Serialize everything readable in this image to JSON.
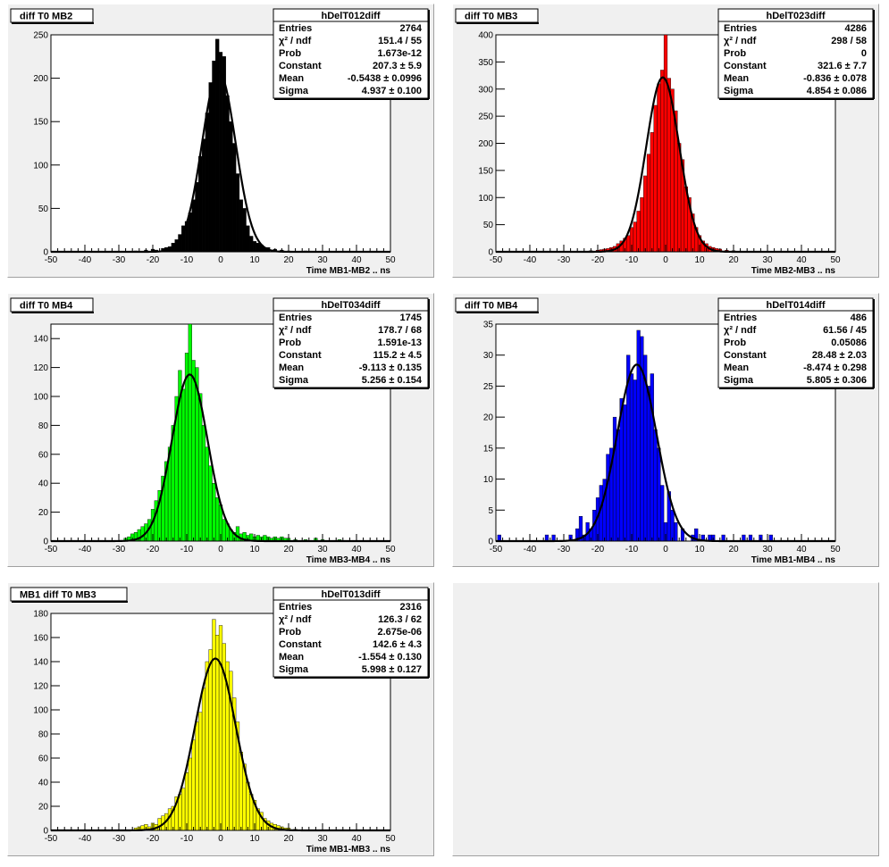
{
  "chart_data": [
    {
      "type": "histogram",
      "pad_label": "diff T0 MB2",
      "histogram_name": "hDelT012diff",
      "xlabel": "Time MB1-MB2  ..  ns",
      "ylabel": "",
      "xlim": [
        -50,
        50
      ],
      "ylim": [
        0,
        250
      ],
      "x_ticks": [
        -50,
        -40,
        -30,
        -20,
        -10,
        0,
        10,
        20,
        30,
        40,
        50
      ],
      "y_ticks": [
        0,
        50,
        100,
        150,
        200,
        250
      ],
      "fill_color": "#000000",
      "stats": [
        {
          "label": "Entries",
          "value": "2764"
        },
        {
          "label": "χ² / ndf",
          "value": "151.4 / 55"
        },
        {
          "label": "Prob",
          "value": "1.673e-12"
        },
        {
          "label": "Constant",
          "value": "207.3 ± 5.9"
        },
        {
          "label": "Mean",
          "value": "-0.5438 ± 0.0996"
        },
        {
          "label": "Sigma",
          "value": "4.937 ± 0.100"
        }
      ],
      "fit": {
        "constant": 207.3,
        "mean": -0.5438,
        "sigma": 4.937
      },
      "bin_width": 1,
      "bins": [
        {
          "x": -25,
          "y": 1
        },
        {
          "x": -22,
          "y": 2
        },
        {
          "x": -20,
          "y": 3
        },
        {
          "x": -19,
          "y": 2
        },
        {
          "x": -17,
          "y": 4
        },
        {
          "x": -16,
          "y": 5
        },
        {
          "x": -15,
          "y": 6
        },
        {
          "x": -14,
          "y": 10
        },
        {
          "x": -13,
          "y": 14
        },
        {
          "x": -12,
          "y": 20
        },
        {
          "x": -11,
          "y": 30
        },
        {
          "x": -10,
          "y": 35
        },
        {
          "x": -9,
          "y": 45
        },
        {
          "x": -8,
          "y": 60
        },
        {
          "x": -7,
          "y": 80
        },
        {
          "x": -6,
          "y": 110
        },
        {
          "x": -5,
          "y": 130
        },
        {
          "x": -4,
          "y": 160
        },
        {
          "x": -3,
          "y": 195
        },
        {
          "x": -2,
          "y": 220
        },
        {
          "x": -1,
          "y": 245
        },
        {
          "x": 0,
          "y": 230
        },
        {
          "x": 1,
          "y": 225
        },
        {
          "x": 2,
          "y": 180
        },
        {
          "x": 3,
          "y": 150
        },
        {
          "x": 4,
          "y": 125
        },
        {
          "x": 5,
          "y": 90
        },
        {
          "x": 6,
          "y": 60
        },
        {
          "x": 7,
          "y": 50
        },
        {
          "x": 8,
          "y": 30
        },
        {
          "x": 9,
          "y": 18
        },
        {
          "x": 10,
          "y": 12
        },
        {
          "x": 11,
          "y": 10
        },
        {
          "x": 12,
          "y": 8
        },
        {
          "x": 13,
          "y": 5
        },
        {
          "x": 14,
          "y": 5
        },
        {
          "x": 16,
          "y": 3
        },
        {
          "x": 18,
          "y": 2
        },
        {
          "x": 20,
          "y": 1
        },
        {
          "x": 25,
          "y": 1
        }
      ]
    },
    {
      "type": "histogram",
      "pad_label": "diff T0 MB3",
      "histogram_name": "hDelT023diff",
      "xlabel": "Time MB2-MB3  ..  ns",
      "ylabel": "",
      "xlim": [
        -50,
        50
      ],
      "ylim": [
        0,
        400
      ],
      "x_ticks": [
        -50,
        -40,
        -30,
        -20,
        -10,
        0,
        10,
        20,
        30,
        40,
        50
      ],
      "y_ticks": [
        0,
        50,
        100,
        150,
        200,
        250,
        300,
        350,
        400
      ],
      "fill_color": "#ff0000",
      "stats": [
        {
          "label": "Entries",
          "value": "4286"
        },
        {
          "label": "χ² / ndf",
          "value": "298 / 58"
        },
        {
          "label": "Prob",
          "value": "0"
        },
        {
          "label": "Constant",
          "value": "321.6 ± 7.7"
        },
        {
          "label": "Mean",
          "value": "-0.836 ± 0.078"
        },
        {
          "label": "Sigma",
          "value": "4.854 ± 0.086"
        }
      ],
      "fit": {
        "constant": 321.6,
        "mean": -0.836,
        "sigma": 4.854
      },
      "bin_width": 1,
      "bins": [
        {
          "x": -25,
          "y": 1
        },
        {
          "x": -22,
          "y": 2
        },
        {
          "x": -20,
          "y": 3
        },
        {
          "x": -19,
          "y": 4
        },
        {
          "x": -18,
          "y": 5
        },
        {
          "x": -17,
          "y": 6
        },
        {
          "x": -16,
          "y": 8
        },
        {
          "x": -15,
          "y": 10
        },
        {
          "x": -14,
          "y": 15
        },
        {
          "x": -13,
          "y": 20
        },
        {
          "x": -12,
          "y": 25
        },
        {
          "x": -11,
          "y": 30
        },
        {
          "x": -10,
          "y": 45
        },
        {
          "x": -9,
          "y": 55
        },
        {
          "x": -8,
          "y": 75
        },
        {
          "x": -7,
          "y": 100
        },
        {
          "x": -6,
          "y": 140
        },
        {
          "x": -5,
          "y": 180
        },
        {
          "x": -4,
          "y": 220
        },
        {
          "x": -3,
          "y": 270
        },
        {
          "x": -2,
          "y": 310
        },
        {
          "x": -1,
          "y": 335
        },
        {
          "x": 0,
          "y": 400
        },
        {
          "x": 1,
          "y": 320
        },
        {
          "x": 2,
          "y": 300
        },
        {
          "x": 3,
          "y": 260
        },
        {
          "x": 4,
          "y": 200
        },
        {
          "x": 5,
          "y": 170
        },
        {
          "x": 6,
          "y": 120
        },
        {
          "x": 7,
          "y": 100
        },
        {
          "x": 8,
          "y": 70
        },
        {
          "x": 9,
          "y": 45
        },
        {
          "x": 10,
          "y": 30
        },
        {
          "x": 11,
          "y": 20
        },
        {
          "x": 12,
          "y": 15
        },
        {
          "x": 13,
          "y": 10
        },
        {
          "x": 14,
          "y": 8
        },
        {
          "x": 15,
          "y": 6
        },
        {
          "x": 16,
          "y": 5
        },
        {
          "x": 18,
          "y": 3
        },
        {
          "x": 20,
          "y": 2
        },
        {
          "x": 22,
          "y": 1
        }
      ]
    },
    {
      "type": "histogram",
      "pad_label": "diff T0 MB4",
      "histogram_name": "hDelT034diff",
      "xlabel": "Time MB3-MB4  ..  ns",
      "ylabel": "",
      "xlim": [
        -50,
        50
      ],
      "ylim": [
        0,
        150
      ],
      "x_ticks": [
        -50,
        -40,
        -30,
        -20,
        -10,
        0,
        10,
        20,
        30,
        40,
        50
      ],
      "y_ticks": [
        0,
        20,
        40,
        60,
        80,
        100,
        120,
        140
      ],
      "fill_color": "#00ff00",
      "stats": [
        {
          "label": "Entries",
          "value": "1745"
        },
        {
          "label": "χ² / ndf",
          "value": "178.7 / 68"
        },
        {
          "label": "Prob",
          "value": "1.591e-13"
        },
        {
          "label": "Constant",
          "value": "115.2 ± 4.5"
        },
        {
          "label": "Mean",
          "value": "-9.113 ± 0.135"
        },
        {
          "label": "Sigma",
          "value": "5.256 ± 0.154"
        }
      ],
      "fit": {
        "constant": 115.2,
        "mean": -9.113,
        "sigma": 5.256
      },
      "bin_width": 1,
      "bins": [
        {
          "x": -28,
          "y": 2
        },
        {
          "x": -27,
          "y": 3
        },
        {
          "x": -26,
          "y": 5
        },
        {
          "x": -25,
          "y": 6
        },
        {
          "x": -24,
          "y": 8
        },
        {
          "x": -23,
          "y": 10
        },
        {
          "x": -22,
          "y": 12
        },
        {
          "x": -21,
          "y": 15
        },
        {
          "x": -20,
          "y": 22
        },
        {
          "x": -19,
          "y": 28
        },
        {
          "x": -18,
          "y": 35
        },
        {
          "x": -17,
          "y": 45
        },
        {
          "x": -16,
          "y": 55
        },
        {
          "x": -15,
          "y": 65
        },
        {
          "x": -14,
          "y": 80
        },
        {
          "x": -13,
          "y": 100
        },
        {
          "x": -12,
          "y": 118
        },
        {
          "x": -11,
          "y": 105
        },
        {
          "x": -10,
          "y": 130
        },
        {
          "x": -9,
          "y": 150
        },
        {
          "x": -8,
          "y": 125
        },
        {
          "x": -7,
          "y": 120
        },
        {
          "x": -6,
          "y": 102
        },
        {
          "x": -5,
          "y": 80
        },
        {
          "x": -4,
          "y": 65
        },
        {
          "x": -3,
          "y": 52
        },
        {
          "x": -2,
          "y": 40
        },
        {
          "x": -1,
          "y": 30
        },
        {
          "x": 0,
          "y": 25
        },
        {
          "x": 1,
          "y": 15
        },
        {
          "x": 2,
          "y": 12
        },
        {
          "x": 3,
          "y": 8
        },
        {
          "x": 4,
          "y": 6
        },
        {
          "x": 5,
          "y": 10
        },
        {
          "x": 6,
          "y": 5
        },
        {
          "x": 7,
          "y": 6
        },
        {
          "x": 8,
          "y": 4
        },
        {
          "x": 9,
          "y": 5
        },
        {
          "x": 10,
          "y": 3
        },
        {
          "x": 11,
          "y": 4
        },
        {
          "x": 12,
          "y": 3
        },
        {
          "x": 13,
          "y": 4
        },
        {
          "x": 14,
          "y": 3
        },
        {
          "x": 15,
          "y": 2
        },
        {
          "x": 16,
          "y": 3
        },
        {
          "x": 17,
          "y": 2
        },
        {
          "x": 18,
          "y": 3
        },
        {
          "x": 19,
          "y": 2
        },
        {
          "x": 20,
          "y": 2
        },
        {
          "x": 22,
          "y": 1
        },
        {
          "x": 25,
          "y": 1
        },
        {
          "x": 28,
          "y": 2
        },
        {
          "x": 30,
          "y": 1
        },
        {
          "x": 35,
          "y": 1
        }
      ]
    },
    {
      "type": "histogram",
      "pad_label": "diff T0 MB4",
      "histogram_name": "hDelT014diff",
      "xlabel": "Time MB1-MB4  ..  ns",
      "ylabel": "",
      "xlim": [
        -50,
        50
      ],
      "ylim": [
        0,
        35
      ],
      "x_ticks": [
        -50,
        -40,
        -30,
        -20,
        -10,
        0,
        10,
        20,
        30,
        40,
        50
      ],
      "y_ticks": [
        0,
        5,
        10,
        15,
        20,
        25,
        30,
        35
      ],
      "fill_color": "#0000ff",
      "stats": [
        {
          "label": "Entries",
          "value": "486"
        },
        {
          "label": "χ² / ndf",
          "value": "61.56 / 45"
        },
        {
          "label": "Prob",
          "value": "0.05086"
        },
        {
          "label": "Constant",
          "value": "28.48 ± 2.03"
        },
        {
          "label": "Mean",
          "value": "-8.474 ± 0.298"
        },
        {
          "label": "Sigma",
          "value": "5.805 ± 0.306"
        }
      ],
      "fit": {
        "constant": 28.48,
        "mean": -8.474,
        "sigma": 5.805
      },
      "bin_width": 1,
      "bins": [
        {
          "x": -49,
          "y": 1
        },
        {
          "x": -35,
          "y": 1
        },
        {
          "x": -33,
          "y": 1
        },
        {
          "x": -28,
          "y": 1
        },
        {
          "x": -26,
          "y": 2
        },
        {
          "x": -25,
          "y": 4
        },
        {
          "x": -24,
          "y": 1
        },
        {
          "x": -23,
          "y": 3
        },
        {
          "x": -22,
          "y": 2
        },
        {
          "x": -21,
          "y": 5
        },
        {
          "x": -20,
          "y": 7
        },
        {
          "x": -19,
          "y": 9
        },
        {
          "x": -18,
          "y": 10
        },
        {
          "x": -17,
          "y": 14
        },
        {
          "x": -16,
          "y": 15
        },
        {
          "x": -15,
          "y": 20
        },
        {
          "x": -14,
          "y": 18
        },
        {
          "x": -13,
          "y": 23
        },
        {
          "x": -12,
          "y": 22
        },
        {
          "x": -11,
          "y": 30
        },
        {
          "x": -10,
          "y": 27
        },
        {
          "x": -9,
          "y": 26
        },
        {
          "x": -8,
          "y": 34
        },
        {
          "x": -7,
          "y": 33
        },
        {
          "x": -6,
          "y": 30
        },
        {
          "x": -5,
          "y": 25
        },
        {
          "x": -4,
          "y": 27
        },
        {
          "x": -3,
          "y": 18
        },
        {
          "x": -2,
          "y": 15
        },
        {
          "x": -1,
          "y": 9
        },
        {
          "x": 0,
          "y": 3
        },
        {
          "x": 1,
          "y": 8
        },
        {
          "x": 2,
          "y": 5
        },
        {
          "x": 3,
          "y": 3
        },
        {
          "x": 5,
          "y": 2
        },
        {
          "x": 8,
          "y": 1
        },
        {
          "x": 9,
          "y": 2
        },
        {
          "x": 11,
          "y": 1
        },
        {
          "x": 13,
          "y": 1
        },
        {
          "x": 14,
          "y": 1
        },
        {
          "x": 17,
          "y": 1
        },
        {
          "x": 23,
          "y": 1
        },
        {
          "x": 25,
          "y": 1
        },
        {
          "x": 28,
          "y": 1
        },
        {
          "x": 31,
          "y": 1
        }
      ]
    },
    {
      "type": "histogram",
      "pad_label": "MB1 diff T0 MB3",
      "histogram_name": "hDelT013diff",
      "xlabel": "Time MB1-MB3  ..  ns",
      "ylabel": "",
      "xlim": [
        -50,
        50
      ],
      "ylim": [
        0,
        180
      ],
      "x_ticks": [
        -50,
        -40,
        -30,
        -20,
        -10,
        0,
        10,
        20,
        30,
        40,
        50
      ],
      "y_ticks": [
        0,
        20,
        40,
        60,
        80,
        100,
        120,
        140,
        160,
        180
      ],
      "fill_color": "#ffff00",
      "stats": [
        {
          "label": "Entries",
          "value": "2316"
        },
        {
          "label": "χ² / ndf",
          "value": "126.3 / 62"
        },
        {
          "label": "Prob",
          "value": "2.675e-06"
        },
        {
          "label": "Constant",
          "value": "142.6 ± 4.3"
        },
        {
          "label": "Mean",
          "value": "-1.554 ± 0.130"
        },
        {
          "label": "Sigma",
          "value": "5.998 ± 0.127"
        }
      ],
      "fit": {
        "constant": 142.6,
        "mean": -1.554,
        "sigma": 5.998
      },
      "bin_width": 1,
      "bins": [
        {
          "x": -25,
          "y": 2
        },
        {
          "x": -24,
          "y": 3
        },
        {
          "x": -23,
          "y": 4
        },
        {
          "x": -22,
          "y": 5
        },
        {
          "x": -21,
          "y": 3
        },
        {
          "x": -20,
          "y": 6
        },
        {
          "x": -19,
          "y": 5
        },
        {
          "x": -18,
          "y": 10
        },
        {
          "x": -17,
          "y": 12
        },
        {
          "x": -16,
          "y": 14
        },
        {
          "x": -15,
          "y": 18
        },
        {
          "x": -14,
          "y": 20
        },
        {
          "x": -13,
          "y": 28
        },
        {
          "x": -12,
          "y": 30
        },
        {
          "x": -11,
          "y": 35
        },
        {
          "x": -10,
          "y": 48
        },
        {
          "x": -9,
          "y": 60
        },
        {
          "x": -8,
          "y": 75
        },
        {
          "x": -7,
          "y": 90
        },
        {
          "x": -6,
          "y": 98
        },
        {
          "x": -5,
          "y": 118
        },
        {
          "x": -4,
          "y": 140
        },
        {
          "x": -3,
          "y": 150
        },
        {
          "x": -2,
          "y": 175
        },
        {
          "x": -1,
          "y": 162
        },
        {
          "x": 0,
          "y": 170
        },
        {
          "x": 1,
          "y": 155
        },
        {
          "x": 2,
          "y": 140
        },
        {
          "x": 3,
          "y": 132
        },
        {
          "x": 4,
          "y": 110
        },
        {
          "x": 5,
          "y": 90
        },
        {
          "x": 6,
          "y": 65
        },
        {
          "x": 7,
          "y": 55
        },
        {
          "x": 8,
          "y": 40
        },
        {
          "x": 9,
          "y": 30
        },
        {
          "x": 10,
          "y": 25
        },
        {
          "x": 11,
          "y": 18
        },
        {
          "x": 12,
          "y": 15
        },
        {
          "x": 13,
          "y": 10
        },
        {
          "x": 14,
          "y": 8
        },
        {
          "x": 15,
          "y": 6
        },
        {
          "x": 16,
          "y": 5
        },
        {
          "x": 17,
          "y": 4
        },
        {
          "x": 18,
          "y": 3
        },
        {
          "x": 19,
          "y": 2
        },
        {
          "x": 20,
          "y": 2
        },
        {
          "x": 22,
          "y": 1
        }
      ]
    }
  ]
}
